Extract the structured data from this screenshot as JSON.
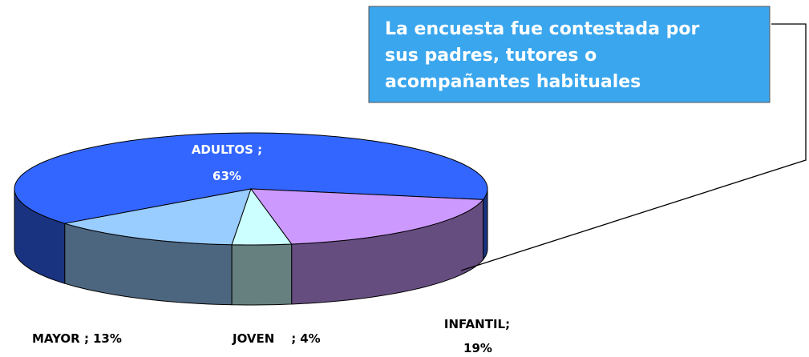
{
  "chart_data": {
    "type": "pie",
    "categories": [
      "ADULTOS ;",
      "MAYOR ;",
      "JOVEN    ;",
      "INFANTIL;"
    ],
    "values": [
      63,
      13,
      4,
      19
    ],
    "value_labels": [
      "63%",
      "13%",
      "4%",
      "19%"
    ],
    "colors": [
      "#3366ff",
      "#99ccff",
      "#ccffff",
      "#cc99ff"
    ],
    "annotation": [
      "La encuesta fue contestada por",
      "sus padres, tutores o",
      "acompañantes habituales"
    ]
  }
}
